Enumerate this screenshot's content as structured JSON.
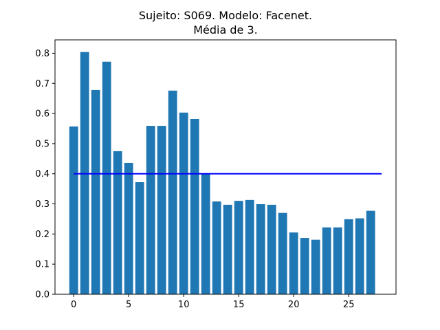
{
  "chart_data": {
    "type": "bar",
    "title": [
      "Sujeito: S069. Modelo: Facenet.",
      "Média de 3."
    ],
    "xlabel": "",
    "ylabel": "",
    "x": [
      0,
      1,
      2,
      3,
      4,
      5,
      6,
      7,
      8,
      9,
      10,
      11,
      12,
      13,
      14,
      15,
      16,
      17,
      18,
      19,
      20,
      21,
      22,
      23,
      24,
      25,
      26,
      27
    ],
    "values": [
      0.557,
      0.804,
      0.678,
      0.772,
      0.475,
      0.436,
      0.372,
      0.559,
      0.559,
      0.676,
      0.603,
      0.582,
      0.4,
      0.308,
      0.297,
      0.31,
      0.313,
      0.299,
      0.297,
      0.27,
      0.205,
      0.187,
      0.181,
      0.222,
      0.222,
      0.249,
      0.252,
      0.277
    ],
    "xlim": [
      -1.7,
      29.3
    ],
    "ylim": [
      0,
      0.8444
    ],
    "xticks": [
      0,
      5,
      10,
      15,
      20,
      25
    ],
    "yticks": [
      0.0,
      0.1,
      0.2,
      0.3,
      0.4,
      0.5,
      0.6,
      0.7,
      0.8
    ],
    "bar_color": "#1f77b4",
    "reference_line": {
      "y": 0.4,
      "x_start": 0,
      "x_end": 28,
      "color": "#0000ff"
    },
    "grid": false,
    "legend": "none"
  }
}
